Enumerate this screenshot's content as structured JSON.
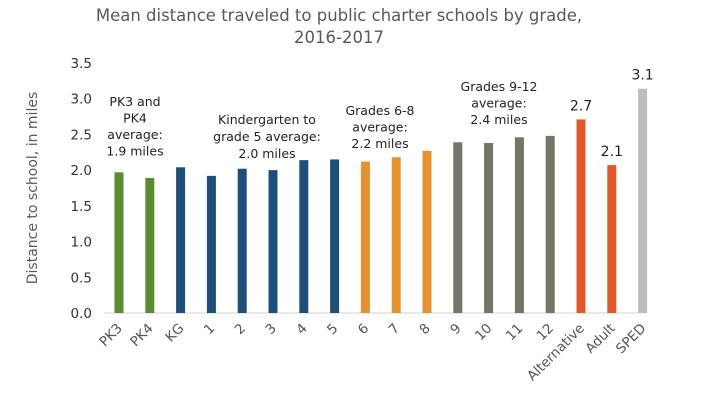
{
  "chart_data": {
    "type": "bar",
    "title": [
      "Mean distance traveled to public charter schools by grade,",
      "2016-2017"
    ],
    "ylabel": "Distance to school, in miles",
    "xlabel": "",
    "ylim": [
      0,
      3.5
    ],
    "yticks": [
      "0.0",
      "0.5",
      "1.0",
      "1.5",
      "2.0",
      "2.5",
      "3.0",
      "3.5"
    ],
    "grid": false,
    "colors": {
      "pk": "#5b8c32",
      "elementary": "#1f4e79",
      "middle": "#e3922f",
      "high": "#767369",
      "alternative": "#e1582a",
      "adult": "#e1582a",
      "sped": "#bdbdbd"
    },
    "categories": [
      "PK3",
      "PK4",
      "KG",
      "1",
      "2",
      "3",
      "4",
      "5",
      "6",
      "7",
      "8",
      "9",
      "10",
      "11",
      "12",
      "Alternative",
      "Adult",
      "SPED"
    ],
    "values": [
      1.97,
      1.89,
      2.04,
      1.92,
      2.02,
      2.0,
      2.14,
      2.15,
      2.12,
      2.18,
      2.27,
      2.39,
      2.38,
      2.46,
      2.48,
      2.71,
      2.07,
      3.14
    ],
    "bar_groups": [
      "pk",
      "pk",
      "elementary",
      "elementary",
      "elementary",
      "elementary",
      "elementary",
      "elementary",
      "middle",
      "middle",
      "middle",
      "high",
      "high",
      "high",
      "high",
      "alternative",
      "adult",
      "sped"
    ],
    "data_labels": [
      {
        "category": "Alternative",
        "text": "2.7"
      },
      {
        "category": "Adult",
        "text": "2.1"
      },
      {
        "category": "SPED",
        "text": "3.1"
      }
    ],
    "annotations": [
      {
        "lines": [
          "PK3 and",
          "PK4",
          "average:",
          "1.9 miles"
        ]
      },
      {
        "lines": [
          "Kindergarten to",
          "grade 5 average:",
          "2.0 miles"
        ]
      },
      {
        "lines": [
          "Grades 6-8",
          "average:",
          "2.2 miles"
        ]
      },
      {
        "lines": [
          "Grades 9-12",
          "average:",
          "2.4 miles"
        ]
      }
    ]
  }
}
